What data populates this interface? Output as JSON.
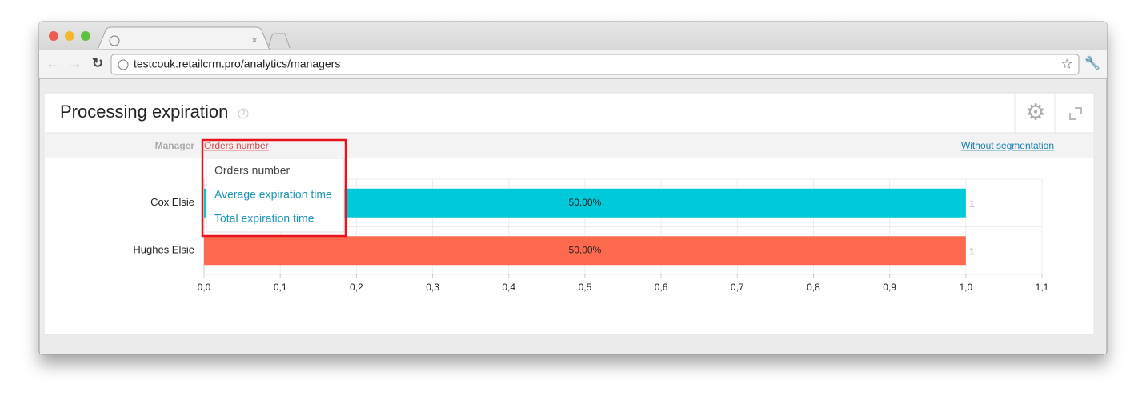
{
  "browser": {
    "url": "testcouk.retailcrm.pro/analytics/managers"
  },
  "panel": {
    "title": "Processing expiration"
  },
  "toolbar": {
    "group_label": "Manager",
    "metric": "Orders number",
    "segmentation": "Without segmentation"
  },
  "dropdown": {
    "items": [
      "Orders number",
      "Average expiration time",
      "Total expiration time"
    ]
  },
  "chart_data": {
    "type": "bar",
    "categories": [
      "Cox Elsie",
      "Hughes Elsie"
    ],
    "values": [
      1,
      1
    ],
    "share_labels": [
      "50,00%",
      "50,00%"
    ],
    "colors": [
      "#00c9d9",
      "#ff6a4e"
    ],
    "xlim": [
      0,
      1.1
    ],
    "xticks": [
      {
        "value": 0,
        "label": "0,0"
      },
      {
        "value": 0.1,
        "label": "0,1"
      },
      {
        "value": 0.2,
        "label": "0,2"
      },
      {
        "value": 0.3,
        "label": "0,3"
      },
      {
        "value": 0.4,
        "label": "0,4"
      },
      {
        "value": 0.5,
        "label": "0,5"
      },
      {
        "value": 0.6,
        "label": "0,6"
      },
      {
        "value": 0.7,
        "label": "0,7"
      },
      {
        "value": 0.8,
        "label": "0,8"
      },
      {
        "value": 0.9,
        "label": "0,9"
      },
      {
        "value": 1,
        "label": "1,0"
      },
      {
        "value": 1.1,
        "label": "1,1"
      }
    ],
    "grid": true
  }
}
